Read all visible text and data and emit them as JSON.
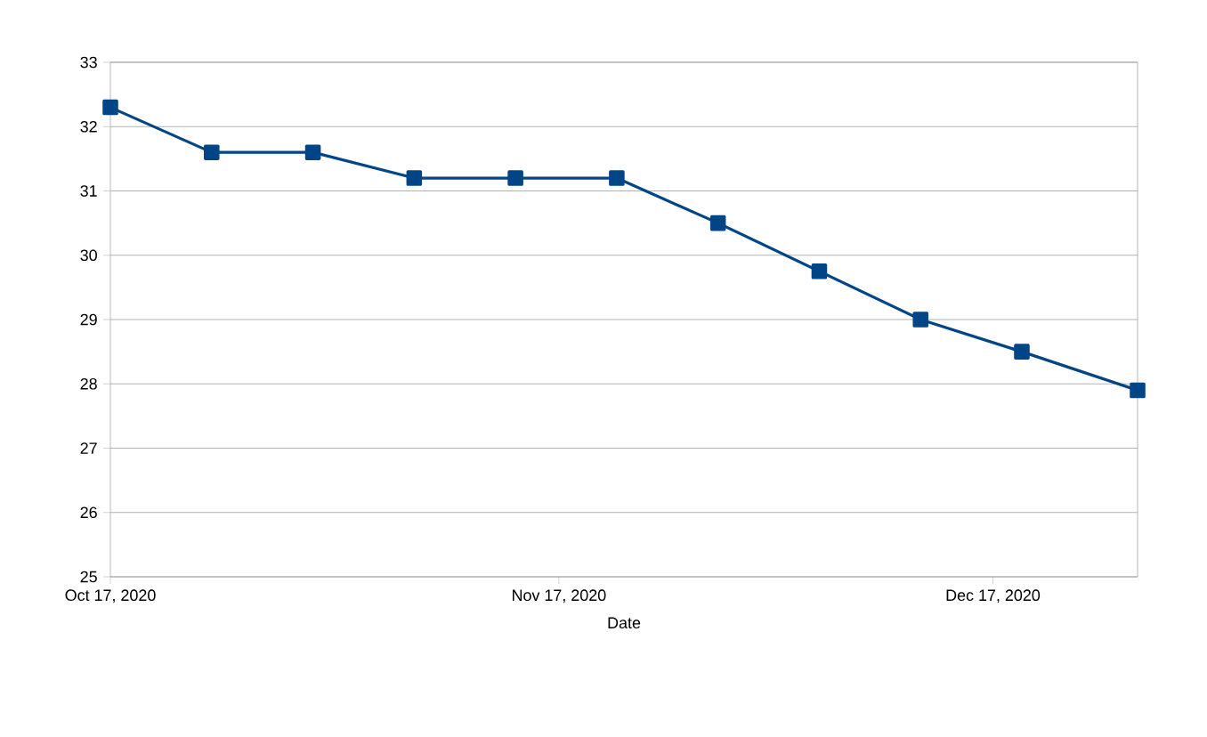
{
  "chart_data": {
    "type": "line",
    "xlabel": "Date",
    "x": [
      "2020-10-17",
      "2020-10-24",
      "2020-10-31",
      "2020-11-07",
      "2020-11-14",
      "2020-11-21",
      "2020-11-28",
      "2020-12-05",
      "2020-12-12",
      "2020-12-19",
      "2020-12-27"
    ],
    "series": [
      {
        "color": "#004586",
        "values": [
          32.3,
          31.6,
          31.6,
          31.2,
          31.2,
          31.2,
          30.5,
          29.75,
          29.0,
          28.5,
          27.9
        ]
      }
    ],
    "xlim": [
      "2020-10-17",
      "2020-12-27"
    ],
    "xticks": [
      {
        "value": "2020-10-17",
        "label": "Oct 17, 2020"
      },
      {
        "value": "2020-11-17",
        "label": "Nov 17, 2020"
      },
      {
        "value": "2020-12-17",
        "label": "Dec 17, 2020"
      }
    ],
    "ylim": [
      25,
      33
    ],
    "yticks": [
      25,
      26,
      27,
      28,
      29,
      30,
      31,
      32,
      33
    ],
    "grid": "y",
    "marker": "square",
    "line_style": "solid"
  }
}
